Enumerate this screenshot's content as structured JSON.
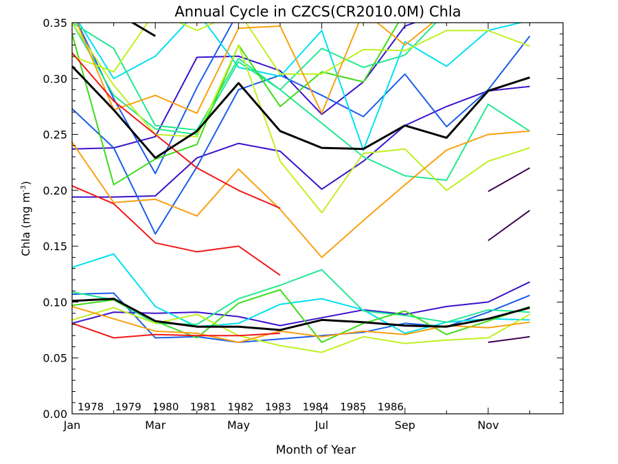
{
  "chart_data": {
    "type": "line",
    "title": "Annual Cycle in CZCS(CR2010.0M) Chla",
    "xlabel": "Month of Year",
    "ylabel": "Chla (mg m",
    "ylabel_sup": "-3",
    "ylabel_close": ")",
    "xlim": [
      1,
      12.8
    ],
    "ylim": [
      0,
      0.35
    ],
    "x_ticks": [
      1,
      3,
      5,
      7,
      9,
      11
    ],
    "x_tick_labels": [
      "Jan",
      "Mar",
      "May",
      "Jul",
      "Sep",
      "Nov"
    ],
    "y_ticks": [
      0,
      0.05,
      0.1,
      0.15,
      0.2,
      0.25,
      0.3,
      0.35
    ],
    "y_tick_labels": [
      "0.00",
      "0.05",
      "0.10",
      "0.15",
      "0.20",
      "0.25",
      "0.30",
      "0.35"
    ],
    "legend_position": "bottom-left",
    "series": [
      {
        "name": "1978",
        "color": "#3d0050",
        "lines": [
          {
            "x": [
              11,
              12
            ],
            "y": [
              0.199,
              0.22
            ]
          },
          {
            "x": [
              11,
              12
            ],
            "y": [
              0.155,
              0.182
            ]
          },
          {
            "x": [
              11,
              12
            ],
            "y": [
              0.064,
              0.069
            ]
          }
        ]
      },
      {
        "name": "1979",
        "color": "#3a10cc",
        "lines": [
          {
            "x": [
              1,
              2,
              3,
              4,
              5,
              6,
              7,
              8,
              9,
              10,
              11,
              12
            ],
            "y": [
              0.237,
              0.238,
              0.248,
              0.319,
              0.32,
              0.307,
              0.268,
              0.297,
              0.347,
              0.36,
              0.36,
              0.36
            ]
          },
          {
            "x": [
              1,
              2,
              3,
              4,
              5,
              6,
              7,
              8,
              9,
              10,
              11,
              12
            ],
            "y": [
              0.194,
              0.194,
              0.195,
              0.229,
              0.242,
              0.235,
              0.201,
              0.226,
              0.258,
              0.275,
              0.289,
              0.293
            ]
          },
          {
            "x": [
              1,
              2,
              3,
              4,
              5,
              6,
              7,
              8,
              9,
              10,
              11,
              12
            ],
            "y": [
              0.081,
              0.091,
              0.09,
              0.091,
              0.087,
              0.079,
              0.086,
              0.093,
              0.089,
              0.096,
              0.1,
              0.118
            ]
          }
        ]
      },
      {
        "name": "1980",
        "color": "#1a5ce8",
        "lines": [
          {
            "x": [
              1,
              2,
              3,
              4,
              5,
              6,
              7,
              8,
              9,
              10,
              11,
              12
            ],
            "y": [
              0.273,
              0.238,
              0.161,
              0.221,
              0.29,
              0.303,
              0.285,
              0.266,
              0.304,
              0.257,
              0.29,
              0.338
            ]
          },
          {
            "x": [
              1,
              2,
              3,
              4,
              5,
              6,
              7
            ],
            "y": [
              0.36,
              0.282,
              0.215,
              0.292,
              0.36,
              0.36,
              0.36
            ]
          },
          {
            "x": [
              1,
              2,
              3,
              4,
              5,
              6,
              7,
              8,
              9,
              10,
              11,
              12
            ],
            "y": [
              0.107,
              0.108,
              0.068,
              0.069,
              0.064,
              0.067,
              0.07,
              0.073,
              0.081,
              0.078,
              0.091,
              0.106
            ]
          }
        ]
      },
      {
        "name": "1981",
        "color": "#00e0f0",
        "lines": [
          {
            "x": [
              1,
              2,
              3,
              4,
              5,
              6,
              7,
              8,
              9,
              10,
              11,
              12
            ],
            "y": [
              0.36,
              0.3,
              0.32,
              0.36,
              0.31,
              0.302,
              0.343,
              0.236,
              0.333,
              0.311,
              0.343,
              0.352
            ]
          },
          {
            "x": [
              1,
              2,
              3,
              4,
              5,
              6,
              7,
              8,
              9,
              10,
              11,
              12
            ],
            "y": [
              0.131,
              0.143,
              0.096,
              0.078,
              0.081,
              0.098,
              0.103,
              0.093,
              0.072,
              0.082,
              0.085,
              0.084
            ]
          }
        ]
      },
      {
        "name": "1982",
        "color": "#20e890",
        "lines": [
          {
            "x": [
              1,
              2,
              3,
              4,
              5,
              6,
              7,
              8,
              9,
              10,
              11,
              12
            ],
            "y": [
              0.35,
              0.327,
              0.258,
              0.254,
              0.318,
              0.29,
              0.327,
              0.31,
              0.321,
              0.36,
              0.36,
              0.36
            ]
          },
          {
            "x": [
              1,
              2,
              3,
              4,
              5,
              6,
              7,
              8,
              9,
              10,
              11,
              12
            ],
            "y": [
              0.35,
              0.285,
              0.255,
              0.25,
              0.315,
              0.29,
              0.26,
              0.23,
              0.213,
              0.209,
              0.277,
              0.253
            ]
          },
          {
            "x": [
              1,
              2,
              3,
              4,
              5,
              6,
              7,
              8,
              9,
              10,
              11,
              12
            ],
            "y": [
              0.109,
              0.102,
              0.081,
              0.08,
              0.103,
              0.115,
              0.129,
              0.092,
              0.088,
              0.082,
              0.093,
              0.091
            ]
          }
        ]
      },
      {
        "name": "1983",
        "color": "#3cdc18",
        "lines": [
          {
            "x": [
              1,
              2,
              3,
              4,
              5,
              6,
              7,
              8,
              9,
              10,
              11,
              12
            ],
            "y": [
              0.34,
              0.205,
              0.228,
              0.241,
              0.33,
              0.275,
              0.306,
              0.297,
              0.36,
              0.36,
              0.36,
              0.36
            ]
          },
          {
            "x": [
              1,
              2,
              3,
              4,
              5,
              6,
              7,
              8,
              9,
              10,
              11,
              12
            ],
            "y": [
              0.097,
              0.102,
              0.083,
              0.068,
              0.099,
              0.111,
              0.064,
              0.081,
              0.092,
              0.071,
              0.083,
              0.096
            ]
          }
        ]
      },
      {
        "name": "1984",
        "color": "#c0f020",
        "lines": [
          {
            "x": [
              1,
              2,
              3,
              4,
              5,
              6,
              7,
              8,
              9,
              10,
              11,
              12
            ],
            "y": [
              0.32,
              0.306,
              0.36,
              0.343,
              0.36,
              0.304,
              0.304,
              0.326,
              0.325,
              0.343,
              0.343,
              0.329
            ]
          },
          {
            "x": [
              1,
              2,
              3,
              4,
              5,
              6,
              7,
              8,
              9,
              10,
              11,
              12
            ],
            "y": [
              0.35,
              0.294,
              0.25,
              0.248,
              0.33,
              0.226,
              0.18,
              0.233,
              0.237,
              0.2,
              0.226,
              0.238
            ]
          },
          {
            "x": [
              1,
              2,
              3,
              4,
              5,
              6,
              7,
              8,
              9,
              10,
              11,
              12
            ],
            "y": [
              0.084,
              0.095,
              0.081,
              0.089,
              0.07,
              0.061,
              0.055,
              0.069,
              0.063,
              0.066,
              0.068,
              0.089
            ]
          }
        ]
      },
      {
        "name": "1985",
        "color": "#f8a010",
        "lines": [
          {
            "x": [
              1,
              2,
              3,
              4,
              5,
              6,
              7,
              8,
              9,
              10,
              11,
              12
            ],
            "y": [
              0.36,
              0.272,
              0.285,
              0.269,
              0.345,
              0.347,
              0.269,
              0.36,
              0.33,
              0.36,
              0.36,
              0.36
            ]
          },
          {
            "x": [
              1,
              2,
              3,
              4,
              5,
              6,
              7,
              8,
              9,
              10,
              11,
              12
            ],
            "y": [
              0.243,
              0.189,
              0.192,
              0.177,
              0.219,
              0.183,
              0.14,
              0.173,
              0.205,
              0.236,
              0.25,
              0.253
            ]
          },
          {
            "x": [
              1,
              2,
              3,
              4,
              5,
              6,
              7,
              8,
              9,
              10,
              11,
              12
            ],
            "y": [
              0.096,
              0.085,
              0.074,
              0.072,
              0.064,
              0.074,
              0.069,
              0.074,
              0.071,
              0.079,
              0.077,
              0.082
            ]
          }
        ]
      },
      {
        "name": "1986",
        "color": "#f01818",
        "lines": [
          {
            "x": [
              1,
              2,
              3,
              4,
              5,
              6
            ],
            "y": [
              0.323,
              0.28,
              0.25,
              0.22,
              0.2,
              0.184
            ]
          },
          {
            "x": [
              1,
              2,
              3,
              4,
              5,
              6
            ],
            "y": [
              0.204,
              0.188,
              0.153,
              0.145,
              0.15,
              0.124
            ]
          },
          {
            "x": [
              1,
              2,
              3,
              4,
              5,
              6
            ],
            "y": [
              0.081,
              0.068,
              0.071,
              0.07,
              0.07,
              0.072
            ]
          }
        ]
      },
      {
        "name": "",
        "color": "#000000",
        "width": 3,
        "legend": false,
        "lines": [
          {
            "x": [
              1,
              2,
              3,
              4,
              5,
              6,
              7,
              8,
              9,
              10,
              11,
              12
            ],
            "y": [
              0.311,
              0.272,
              0.229,
              0.253,
              0.296,
              0.253,
              0.238,
              0.237,
              0.258,
              0.247,
              0.289,
              0.301
            ]
          },
          {
            "x": [
              1,
              2,
              3,
              4,
              5,
              6,
              7,
              8,
              9,
              10,
              11,
              12
            ],
            "y": [
              0.101,
              0.103,
              0.083,
              0.078,
              0.078,
              0.075,
              0.084,
              0.082,
              0.079,
              0.078,
              0.085,
              0.095
            ]
          },
          {
            "x": [
              1,
              2,
              3
            ],
            "y": [
              0.36,
              0.36,
              0.338
            ]
          }
        ]
      }
    ]
  }
}
